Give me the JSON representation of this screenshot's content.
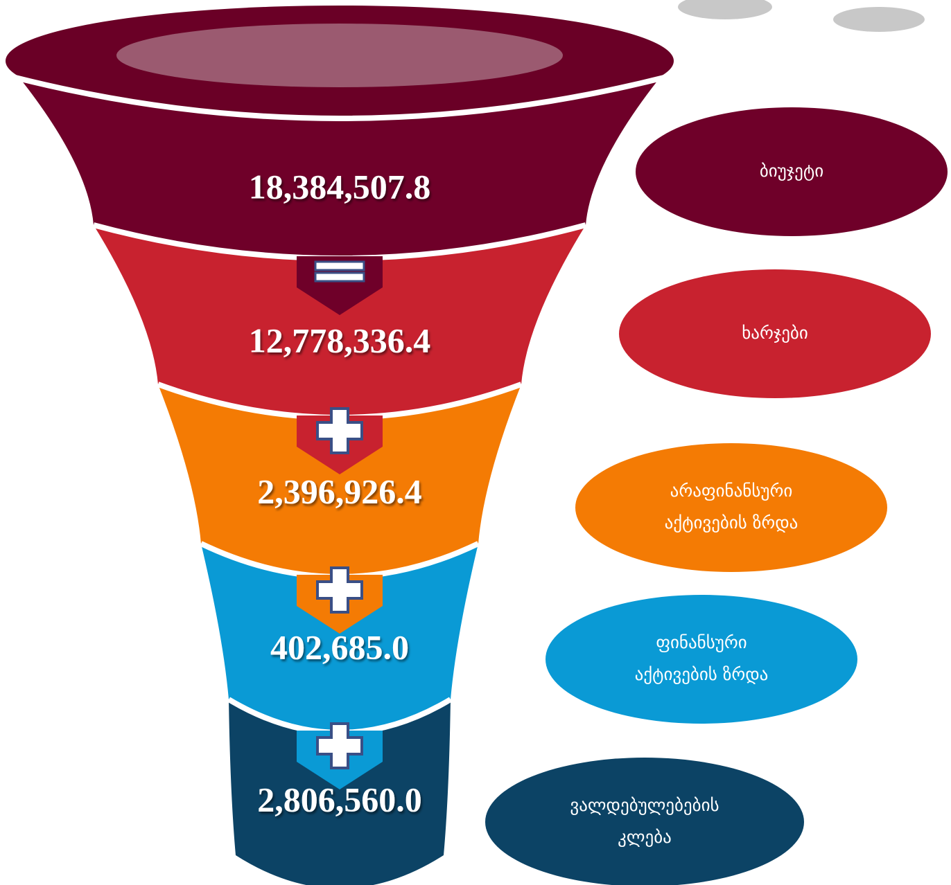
{
  "stages": [
    {
      "value": "18,384,507.8",
      "label": [
        "ბიუჯეტი"
      ]
    },
    {
      "value": "12,778,336.4",
      "label": [
        "ხარჯები"
      ]
    },
    {
      "value": "2,396,926.4",
      "label": [
        "არაფინანსური",
        "აქტივების ზრდა"
      ]
    },
    {
      "value": "402,685.0",
      "label": [
        "ფინანსური",
        "აქტივების ზრდა"
      ]
    },
    {
      "value": "2,806,560.0",
      "label": [
        "ვალდებულებების",
        "კლება"
      ]
    }
  ]
}
